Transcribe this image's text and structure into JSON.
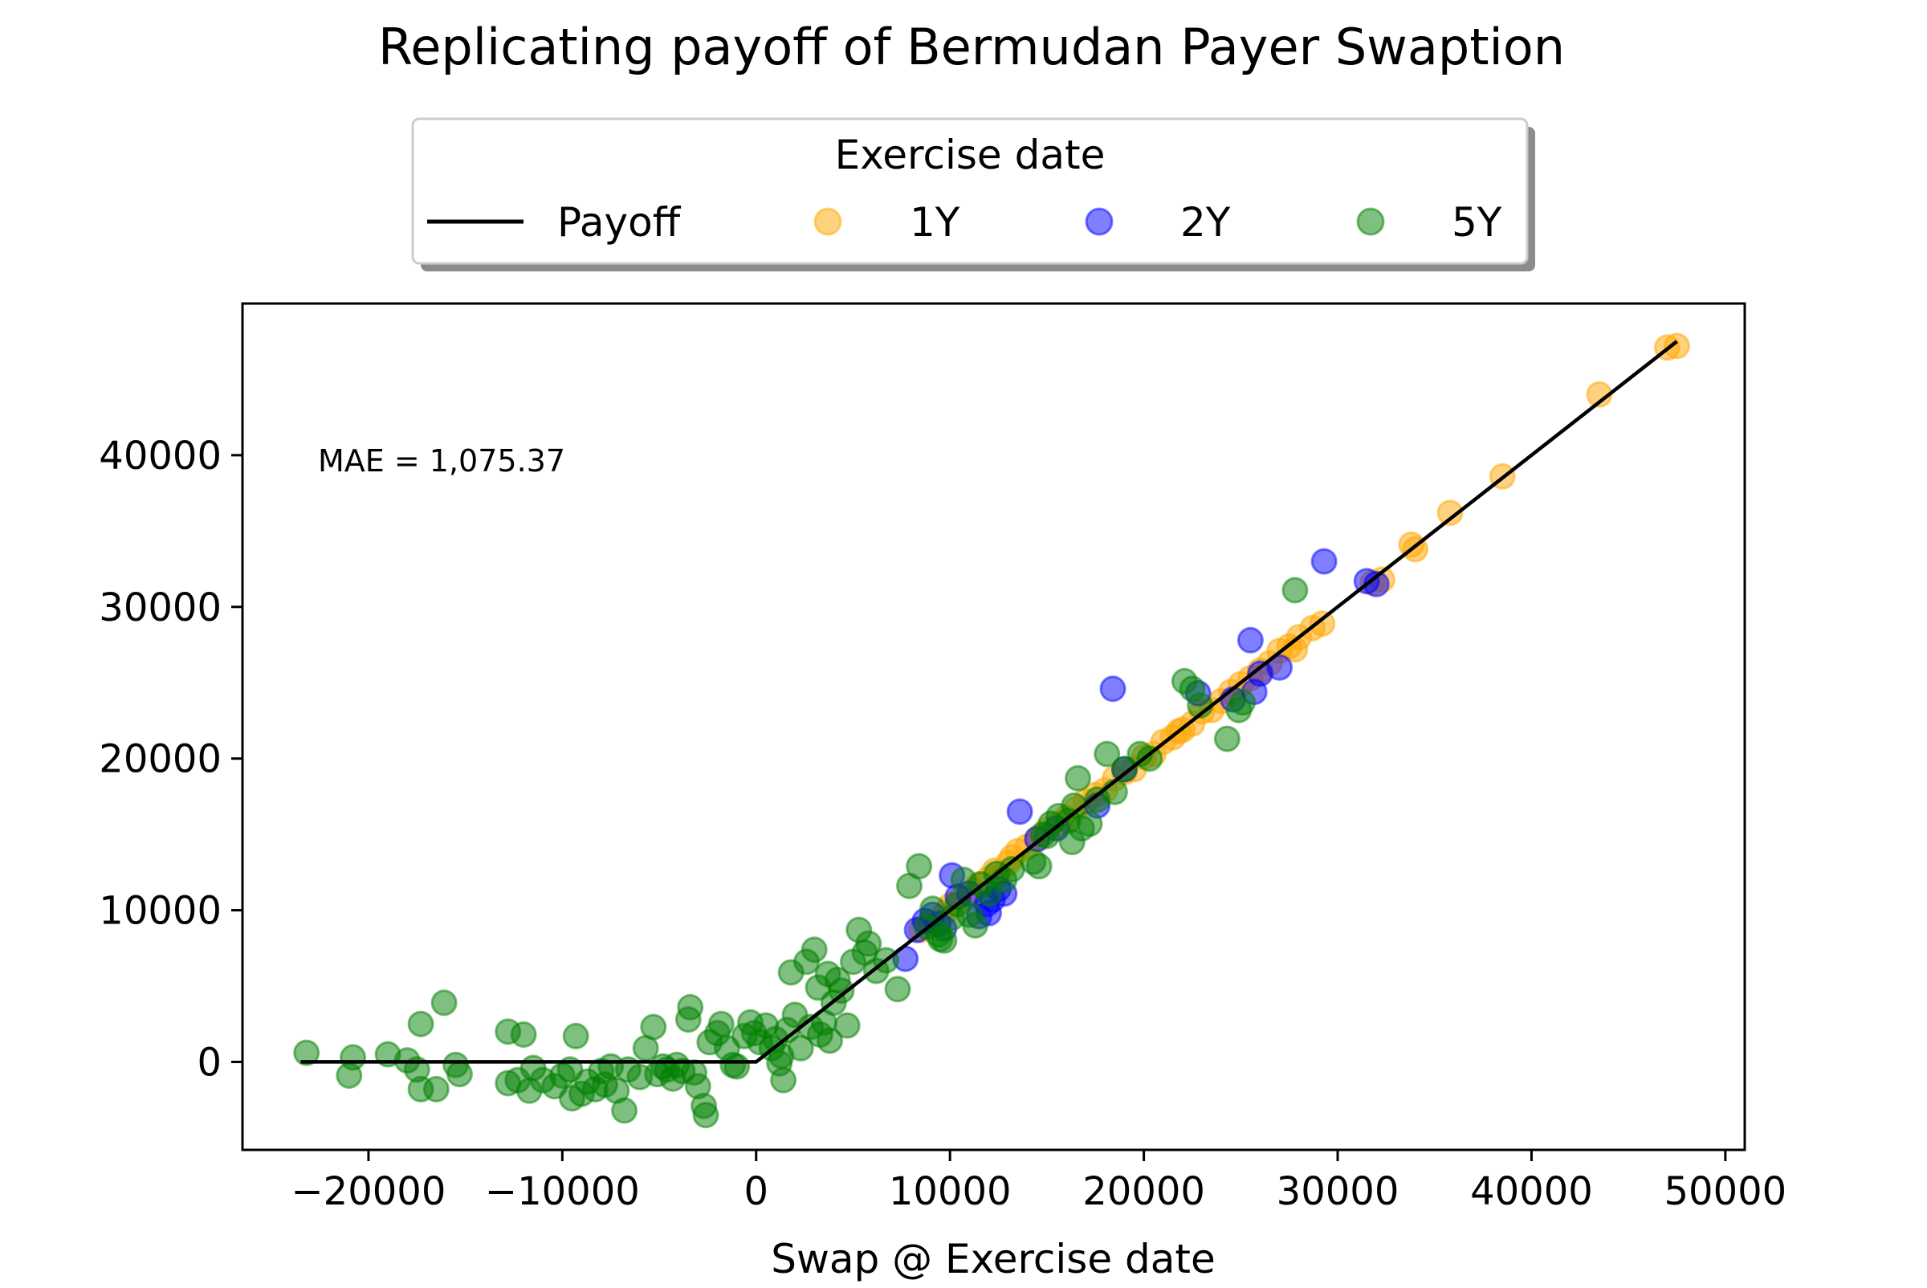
{
  "chart_data": {
    "type": "scatter",
    "title": "Replicating payoff of Bermudan Payer Swaption",
    "xlabel": "Swap @ Exercise date",
    "ylabel": "",
    "xlim": [
      -26500,
      51000
    ],
    "ylim": [
      -5800,
      50000
    ],
    "x_ticks": [
      -20000,
      -10000,
      0,
      10000,
      20000,
      30000,
      40000,
      50000
    ],
    "x_tick_labels": [
      "−20000",
      "−10000",
      "0",
      "10000",
      "20000",
      "30000",
      "40000",
      "50000"
    ],
    "y_ticks": [
      0,
      10000,
      20000,
      30000,
      40000
    ],
    "y_tick_labels": [
      "0",
      "10000",
      "20000",
      "30000",
      "40000"
    ],
    "grid": false,
    "legend": {
      "title": "Exercise date",
      "placement": "top-center-outside"
    },
    "annotation": "MAE = 1,075.37",
    "payoff_line": {
      "name": "Payoff",
      "color": "#000000",
      "x": [
        -23500,
        0,
        47500
      ],
      "y": [
        0,
        0,
        47500
      ]
    },
    "series": [
      {
        "name": "1Y",
        "color": "#ffa500",
        "points": [
          [
            8500,
            8700
          ],
          [
            9800,
            9900
          ],
          [
            10500,
            10700
          ],
          [
            11200,
            11300
          ],
          [
            12000,
            12100
          ],
          [
            12500,
            12400
          ],
          [
            13000,
            13100
          ],
          [
            13500,
            13900
          ],
          [
            14000,
            14200
          ],
          [
            14500,
            14700
          ],
          [
            15000,
            15300
          ],
          [
            15500,
            15600
          ],
          [
            16000,
            16100
          ],
          [
            16500,
            16700
          ],
          [
            17000,
            17200
          ],
          [
            17500,
            17600
          ],
          [
            18000,
            17900
          ],
          [
            18500,
            18700
          ],
          [
            19000,
            19100
          ],
          [
            19500,
            19300
          ],
          [
            20000,
            20100
          ],
          [
            20500,
            20300
          ],
          [
            21000,
            21100
          ],
          [
            21500,
            21400
          ],
          [
            22000,
            21900
          ],
          [
            22500,
            22300
          ],
          [
            23000,
            23100
          ],
          [
            23500,
            23200
          ],
          [
            24000,
            23800
          ],
          [
            24500,
            24400
          ],
          [
            25000,
            24900
          ],
          [
            25500,
            25300
          ],
          [
            26000,
            25800
          ],
          [
            26500,
            26300
          ],
          [
            27000,
            27100
          ],
          [
            27500,
            27400
          ],
          [
            28000,
            28000
          ],
          [
            28700,
            28600
          ],
          [
            29200,
            28900
          ],
          [
            31800,
            31600
          ],
          [
            32300,
            31800
          ],
          [
            33800,
            34100
          ],
          [
            34000,
            33800
          ],
          [
            35800,
            36200
          ],
          [
            38500,
            38600
          ],
          [
            43500,
            44000
          ],
          [
            47000,
            47100
          ],
          [
            47500,
            47200
          ],
          [
            9000,
            9200
          ],
          [
            10000,
            10300
          ],
          [
            11500,
            11700
          ],
          [
            12300,
            12600
          ],
          [
            13200,
            13500
          ],
          [
            21800,
            21800
          ],
          [
            27800,
            27200
          ]
        ]
      },
      {
        "name": "2Y",
        "color": "#0000ff",
        "points": [
          [
            7700,
            6800
          ],
          [
            8300,
            8700
          ],
          [
            8700,
            9300
          ],
          [
            9100,
            9700
          ],
          [
            9400,
            9100
          ],
          [
            9700,
            8800
          ],
          [
            10100,
            12300
          ],
          [
            10400,
            10900
          ],
          [
            11000,
            11100
          ],
          [
            11500,
            9600
          ],
          [
            11900,
            10400
          ],
          [
            12200,
            10700
          ],
          [
            12500,
            11400
          ],
          [
            12800,
            11100
          ],
          [
            13600,
            16500
          ],
          [
            14500,
            14700
          ],
          [
            15500,
            15400
          ],
          [
            17600,
            16900
          ],
          [
            18400,
            24600
          ],
          [
            19000,
            19300
          ],
          [
            22800,
            24300
          ],
          [
            24600,
            23900
          ],
          [
            25500,
            27800
          ],
          [
            25700,
            24400
          ],
          [
            26000,
            25600
          ],
          [
            27000,
            26000
          ],
          [
            29300,
            33000
          ],
          [
            31500,
            31700
          ],
          [
            32000,
            31500
          ],
          [
            12000,
            9800
          ]
        ]
      },
      {
        "name": "5Y",
        "color": "#008000",
        "points": [
          [
            -23200,
            600
          ],
          [
            -20800,
            300
          ],
          [
            -21000,
            -900
          ],
          [
            -19000,
            500
          ],
          [
            -18000,
            100
          ],
          [
            -17500,
            -500
          ],
          [
            -17300,
            -1800
          ],
          [
            -17300,
            2500
          ],
          [
            -16500,
            -1800
          ],
          [
            -16100,
            3900
          ],
          [
            -15500,
            -200
          ],
          [
            -15300,
            -800
          ],
          [
            -12800,
            -1400
          ],
          [
            -12800,
            2000
          ],
          [
            -12300,
            -1200
          ],
          [
            -12000,
            1800
          ],
          [
            -11700,
            -1900
          ],
          [
            -11500,
            -400
          ],
          [
            -11000,
            -1200
          ],
          [
            -10400,
            -1600
          ],
          [
            -10000,
            -900
          ],
          [
            -9600,
            -500
          ],
          [
            -9500,
            -2400
          ],
          [
            -9300,
            1700
          ],
          [
            -9000,
            -2100
          ],
          [
            -8700,
            -1300
          ],
          [
            -8300,
            -1800
          ],
          [
            -8000,
            -600
          ],
          [
            -7800,
            -1500
          ],
          [
            -7500,
            -300
          ],
          [
            -7200,
            -1900
          ],
          [
            -6800,
            -3200
          ],
          [
            -6600,
            -500
          ],
          [
            -6000,
            -1000
          ],
          [
            -5700,
            900
          ],
          [
            -5300,
            2300
          ],
          [
            -5100,
            -800
          ],
          [
            -4800,
            -300
          ],
          [
            -4600,
            -500
          ],
          [
            -4300,
            -1100
          ],
          [
            -4100,
            -200
          ],
          [
            -3800,
            -600
          ],
          [
            -3500,
            2800
          ],
          [
            -3400,
            3600
          ],
          [
            -3200,
            -700
          ],
          [
            -3000,
            -1600
          ],
          [
            -2600,
            -3500
          ],
          [
            -2400,
            1300
          ],
          [
            -2000,
            1900
          ],
          [
            -1800,
            2500
          ],
          [
            -1500,
            900
          ],
          [
            -1200,
            -200
          ],
          [
            -1000,
            -300
          ],
          [
            -600,
            1700
          ],
          [
            -300,
            2600
          ],
          [
            -100,
            1900
          ],
          [
            200,
            1300
          ],
          [
            500,
            2400
          ],
          [
            800,
            900
          ],
          [
            1000,
            1500
          ],
          [
            1200,
            -100
          ],
          [
            1300,
            400
          ],
          [
            1400,
            -1200
          ],
          [
            1600,
            2100
          ],
          [
            1800,
            5900
          ],
          [
            2000,
            3100
          ],
          [
            2300,
            900
          ],
          [
            2600,
            6600
          ],
          [
            2800,
            2300
          ],
          [
            3000,
            7400
          ],
          [
            3200,
            4900
          ],
          [
            3300,
            1800
          ],
          [
            3500,
            2600
          ],
          [
            3700,
            5800
          ],
          [
            3800,
            1400
          ],
          [
            4000,
            3900
          ],
          [
            4200,
            5400
          ],
          [
            4400,
            4700
          ],
          [
            4700,
            2400
          ],
          [
            5000,
            6600
          ],
          [
            5300,
            8700
          ],
          [
            5600,
            7200
          ],
          [
            5800,
            7800
          ],
          [
            6200,
            6000
          ],
          [
            6700,
            6700
          ],
          [
            7300,
            4800
          ],
          [
            7900,
            11600
          ],
          [
            8400,
            12900
          ],
          [
            8800,
            8900
          ],
          [
            9100,
            10100
          ],
          [
            9400,
            8400
          ],
          [
            9700,
            8000
          ],
          [
            10100,
            9500
          ],
          [
            10400,
            10400
          ],
          [
            10700,
            12000
          ],
          [
            11000,
            9700
          ],
          [
            11300,
            9000
          ],
          [
            11600,
            11700
          ],
          [
            12000,
            11100
          ],
          [
            12400,
            12400
          ],
          [
            12800,
            12000
          ],
          [
            13200,
            12700
          ],
          [
            14300,
            13200
          ],
          [
            14600,
            12900
          ],
          [
            14800,
            15000
          ],
          [
            15200,
            15700
          ],
          [
            15600,
            16200
          ],
          [
            16100,
            15900
          ],
          [
            16300,
            14500
          ],
          [
            16600,
            18700
          ],
          [
            16800,
            15400
          ],
          [
            17200,
            15700
          ],
          [
            17600,
            17300
          ],
          [
            18100,
            20300
          ],
          [
            18500,
            17800
          ],
          [
            19000,
            19300
          ],
          [
            19800,
            20300
          ],
          [
            20300,
            20000
          ],
          [
            22100,
            25100
          ],
          [
            22500,
            24600
          ],
          [
            22900,
            23500
          ],
          [
            24300,
            21300
          ],
          [
            24900,
            23200
          ],
          [
            25100,
            23700
          ],
          [
            27800,
            31100
          ],
          [
            9500,
            8100
          ],
          [
            16400,
            16900
          ],
          [
            15000,
            14900
          ],
          [
            -2700,
            -2900
          ]
        ]
      }
    ]
  }
}
